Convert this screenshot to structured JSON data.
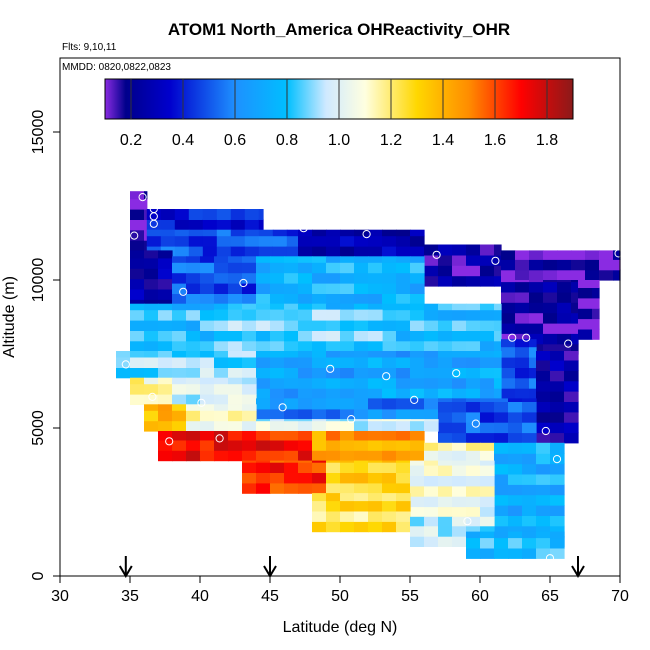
{
  "chart_data": {
    "type": "heatmap",
    "title": "ATOM1 North_America OHReactivity_OHR",
    "flights_label": "Flts: 9,10,11",
    "dates_label": "MMDD: 0820,0822,0823",
    "xlabel": "Latitude (deg N)",
    "ylabel": "Altitude (m)",
    "xlim": [
      30,
      70
    ],
    "ylim": [
      0,
      17500
    ],
    "x_ticks": [
      30,
      35,
      40,
      45,
      50,
      55,
      60,
      65,
      70
    ],
    "y_ticks": [
      0,
      5000,
      10000,
      15000
    ],
    "colorbar": {
      "range": [
        0.1,
        1.9
      ],
      "tick_labels": [
        "0.2",
        "0.4",
        "0.6",
        "0.8",
        "1.0",
        "1.2",
        "1.4",
        "1.6",
        "1.8"
      ],
      "tick_values": [
        0.2,
        0.4,
        0.6,
        0.8,
        1.0,
        1.2,
        1.4,
        1.6,
        1.8
      ],
      "stops": [
        {
          "v": 0.1,
          "color": "#8a2be2"
        },
        {
          "v": 0.18,
          "color": "#00008b"
        },
        {
          "v": 0.35,
          "color": "#0000cd"
        },
        {
          "v": 0.6,
          "color": "#1e90ff"
        },
        {
          "v": 0.8,
          "color": "#00bfff"
        },
        {
          "v": 0.95,
          "color": "#cfe9ff"
        },
        {
          "v": 1.1,
          "color": "#ffffe0"
        },
        {
          "v": 1.3,
          "color": "#ffd700"
        },
        {
          "v": 1.5,
          "color": "#ff8c00"
        },
        {
          "v": 1.7,
          "color": "#ff0000"
        },
        {
          "v": 1.9,
          "color": "#8b1a1a"
        }
      ]
    },
    "grid_cell": {
      "dlat": 1,
      "dalt": 350
    },
    "field_regions": [
      {
        "lat": [
          35,
          36.2
        ],
        "alt": [
          11000,
          13000
        ],
        "value": 0.12
      },
      {
        "lat": [
          36.2,
          44.5
        ],
        "alt": [
          11700,
          12400
        ],
        "value": 0.45
      },
      {
        "lat": [
          36.2,
          47
        ],
        "alt": [
          10800,
          11700
        ],
        "value": 0.55
      },
      {
        "lat": [
          47,
          56
        ],
        "alt": [
          10800,
          11700
        ],
        "value": 0.35
      },
      {
        "lat": [
          56,
          61.5
        ],
        "alt": [
          9800,
          11200
        ],
        "value": 0.25
      },
      {
        "lat": [
          61.5,
          70
        ],
        "alt": [
          10000,
          11000
        ],
        "value": 0.2
      },
      {
        "lat": [
          35,
          38
        ],
        "alt": [
          9000,
          11000
        ],
        "value": 0.3
      },
      {
        "lat": [
          38,
          44
        ],
        "alt": [
          9200,
          10800
        ],
        "value": 0.55
      },
      {
        "lat": [
          44,
          56
        ],
        "alt": [
          9200,
          10800
        ],
        "value": 0.8
      },
      {
        "lat": [
          61.5,
          67
        ],
        "alt": [
          7500,
          10000
        ],
        "value": 0.25
      },
      {
        "lat": [
          67,
          68.5
        ],
        "alt": [
          8000,
          10000
        ],
        "value": 0.2
      },
      {
        "lat": [
          35,
          61.5
        ],
        "alt": [
          7600,
          9200
        ],
        "value": 0.85
      },
      {
        "lat": [
          41,
          53
        ],
        "alt": [
          7600,
          9000
        ],
        "value": 0.92
      },
      {
        "lat": [
          61.5,
          64
        ],
        "alt": [
          6000,
          8000
        ],
        "value": 0.55
      },
      {
        "lat": [
          64,
          67
        ],
        "alt": [
          4500,
          7600
        ],
        "value": 0.3
      },
      {
        "lat": [
          34,
          44
        ],
        "alt": [
          6700,
          7600
        ],
        "value": 0.95
      },
      {
        "lat": [
          44,
          61.5
        ],
        "alt": [
          6000,
          7600
        ],
        "value": 0.75
      },
      {
        "lat": [
          35,
          38
        ],
        "alt": [
          5800,
          6700
        ],
        "value": 1.2
      },
      {
        "lat": [
          38,
          44
        ],
        "alt": [
          5800,
          6700
        ],
        "value": 1.05
      },
      {
        "lat": [
          44,
          60
        ],
        "alt": [
          5300,
          6000
        ],
        "value": 0.65
      },
      {
        "lat": [
          57,
          64
        ],
        "alt": [
          4500,
          6000
        ],
        "value": 0.55
      },
      {
        "lat": [
          36,
          39
        ],
        "alt": [
          4900,
          5800
        ],
        "value": 1.45
      },
      {
        "lat": [
          39,
          44
        ],
        "alt": [
          4900,
          5800
        ],
        "value": 1.15
      },
      {
        "lat": [
          44,
          57
        ],
        "alt": [
          4900,
          5300
        ],
        "value": 1.05
      },
      {
        "lat": [
          37,
          48
        ],
        "alt": [
          3900,
          4900
        ],
        "value": 1.75
      },
      {
        "lat": [
          48,
          56
        ],
        "alt": [
          3900,
          4900
        ],
        "value": 1.5
      },
      {
        "lat": [
          56,
          61
        ],
        "alt": [
          3900,
          4500
        ],
        "value": 1.15
      },
      {
        "lat": [
          61,
          66
        ],
        "alt": [
          1000,
          4500
        ],
        "value": 0.8
      },
      {
        "lat": [
          43,
          49
        ],
        "alt": [
          2800,
          3900
        ],
        "value": 1.7
      },
      {
        "lat": [
          49,
          55
        ],
        "alt": [
          2800,
          3900
        ],
        "value": 1.35
      },
      {
        "lat": [
          55,
          61
        ],
        "alt": [
          2000,
          3900
        ],
        "value": 1.1
      },
      {
        "lat": [
          48,
          55
        ],
        "alt": [
          1500,
          2800
        ],
        "value": 1.3
      },
      {
        "lat": [
          55,
          61
        ],
        "alt": [
          1000,
          2000
        ],
        "value": 1.0
      },
      {
        "lat": [
          59,
          66
        ],
        "alt": [
          600,
          1500
        ],
        "value": 0.85
      }
    ],
    "flight_points": [
      {
        "lat": 35.9,
        "alt": 12800
      },
      {
        "lat": 36.7,
        "alt": 12400
      },
      {
        "lat": 36.7,
        "alt": 12150
      },
      {
        "lat": 36.7,
        "alt": 11900
      },
      {
        "lat": 35.3,
        "alt": 11500
      },
      {
        "lat": 47.4,
        "alt": 11750
      },
      {
        "lat": 51.9,
        "alt": 11550
      },
      {
        "lat": 56.9,
        "alt": 10850
      },
      {
        "lat": 61.1,
        "alt": 10650
      },
      {
        "lat": 69.9,
        "alt": 10900
      },
      {
        "lat": 43.1,
        "alt": 9900
      },
      {
        "lat": 38.8,
        "alt": 9600
      },
      {
        "lat": 62.3,
        "alt": 8050
      },
      {
        "lat": 63.3,
        "alt": 8050
      },
      {
        "lat": 66.3,
        "alt": 7850
      },
      {
        "lat": 34.7,
        "alt": 7150
      },
      {
        "lat": 49.3,
        "alt": 7000
      },
      {
        "lat": 53.3,
        "alt": 6750
      },
      {
        "lat": 58.3,
        "alt": 6850
      },
      {
        "lat": 36.6,
        "alt": 6050
      },
      {
        "lat": 40.1,
        "alt": 5850
      },
      {
        "lat": 45.9,
        "alt": 5700
      },
      {
        "lat": 55.3,
        "alt": 5950
      },
      {
        "lat": 50.8,
        "alt": 5300
      },
      {
        "lat": 59.7,
        "alt": 5150
      },
      {
        "lat": 64.7,
        "alt": 4900
      },
      {
        "lat": 41.4,
        "alt": 4650
      },
      {
        "lat": 37.8,
        "alt": 4550
      },
      {
        "lat": 65.5,
        "alt": 3950
      },
      {
        "lat": 59.1,
        "alt": 1850
      },
      {
        "lat": 65.0,
        "alt": 600
      }
    ],
    "marker_arrows": [
      {
        "lat": 34.7
      },
      {
        "lat": 45.0
      },
      {
        "lat": 67.0
      }
    ]
  }
}
